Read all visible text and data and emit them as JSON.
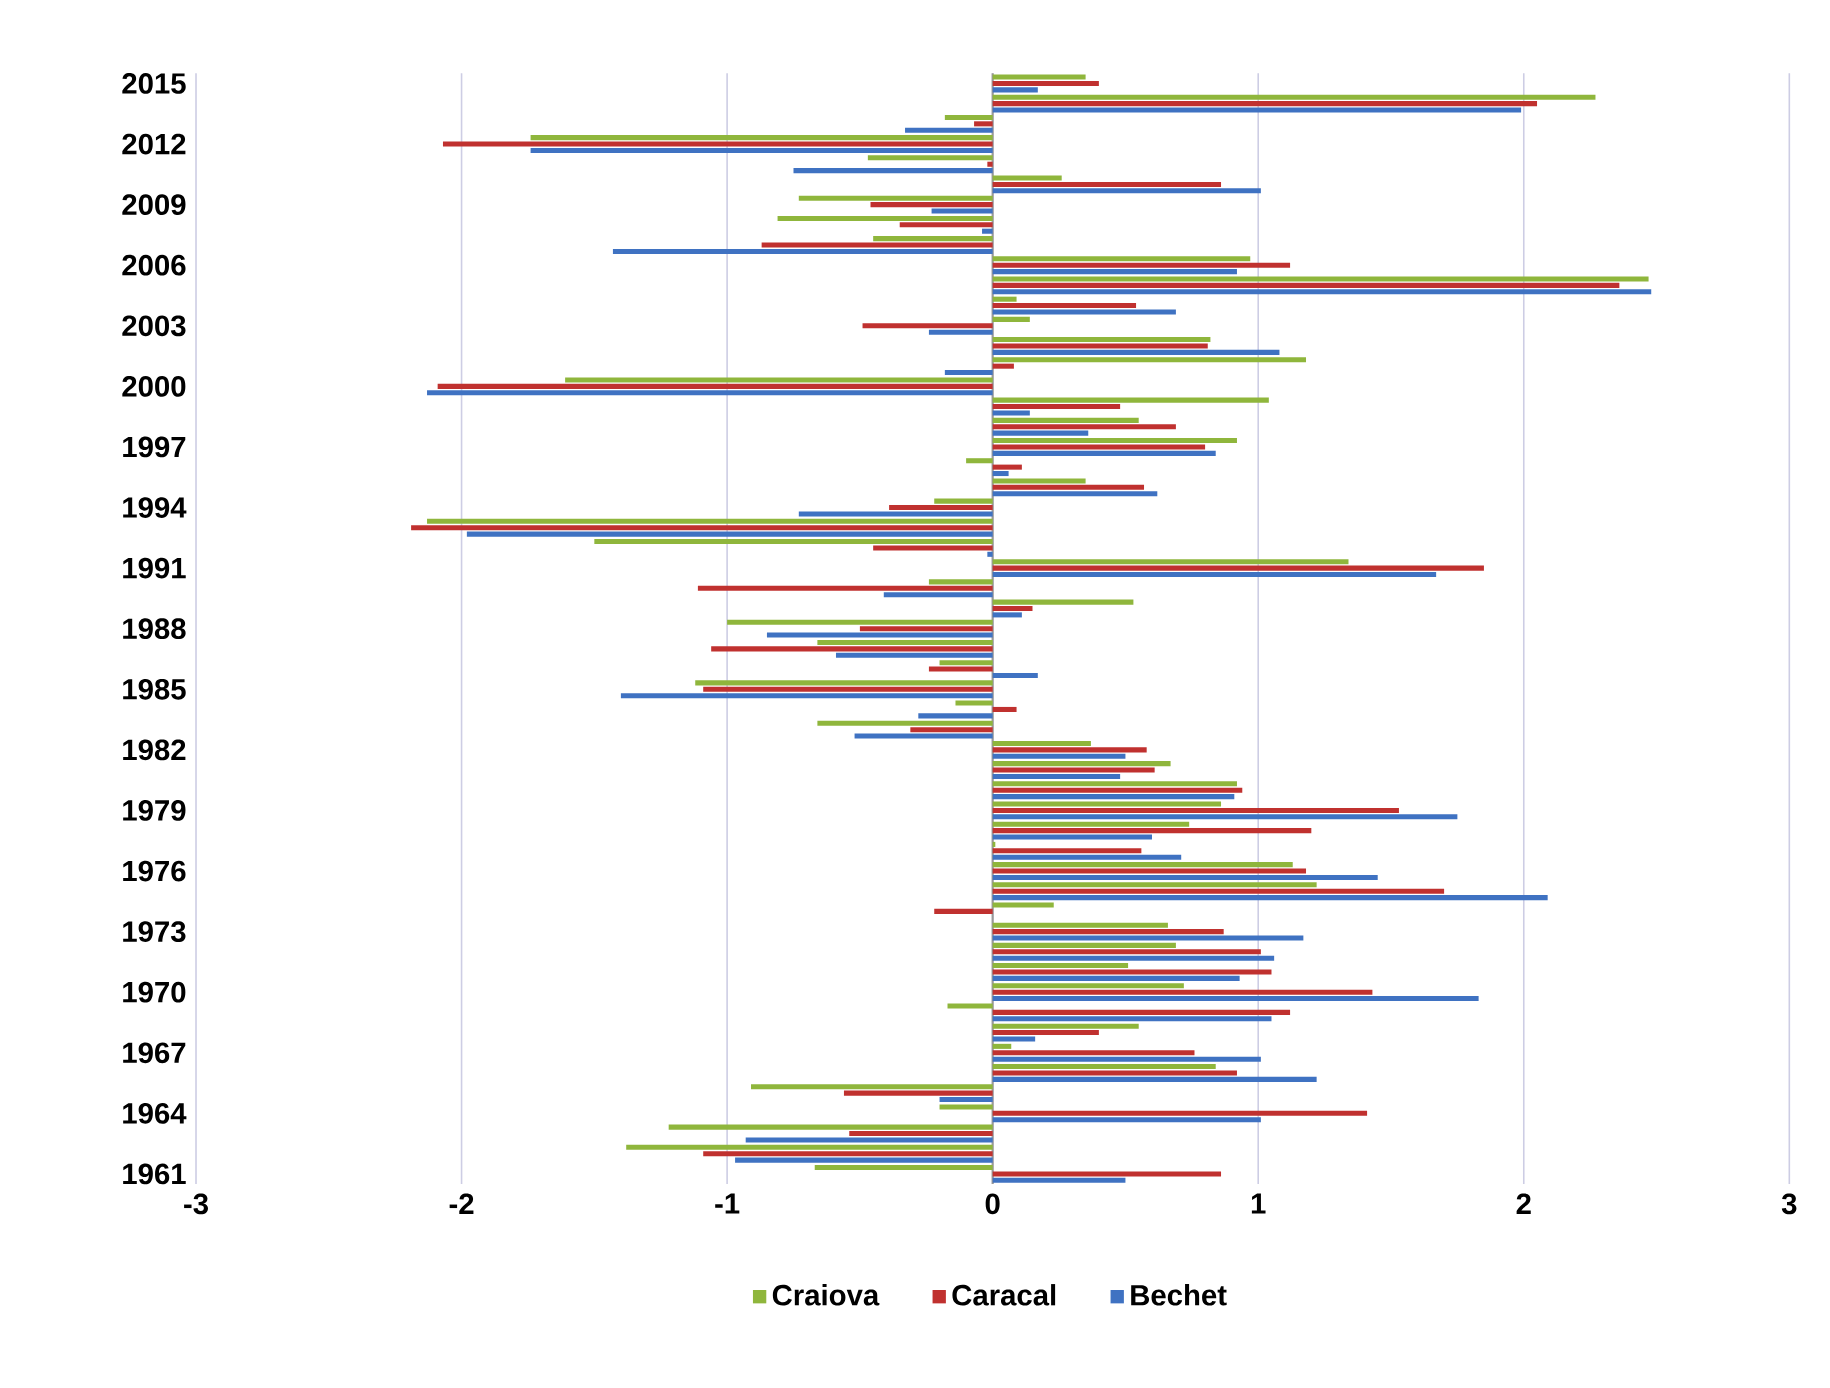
{
  "chart_data": {
    "type": "bar",
    "orientation": "horizontal",
    "categories": [
      "2015",
      null,
      null,
      "2012",
      null,
      null,
      "2009",
      null,
      null,
      "2006",
      null,
      null,
      "2003",
      null,
      null,
      "2000",
      null,
      null,
      "1997",
      null,
      null,
      "1994",
      null,
      null,
      "1991",
      null,
      null,
      "1988",
      null,
      null,
      "1985",
      null,
      null,
      "1982",
      null,
      null,
      "1979",
      null,
      null,
      "1976",
      null,
      null,
      "1973",
      null,
      null,
      "1970",
      null,
      null,
      "1967",
      null,
      null,
      "1964",
      null,
      null,
      "1961"
    ],
    "series": [
      {
        "name": "Craiova",
        "color": "#8fb63c",
        "values": [
          0.35,
          2.27,
          -0.18,
          -1.74,
          -0.47,
          0.26,
          -0.73,
          -0.81,
          -0.45,
          0.97,
          2.47,
          0.09,
          0.14,
          0.82,
          1.18,
          -1.61,
          1.04,
          0.55,
          0.92,
          -0.1,
          0.35,
          -0.22,
          -2.13,
          -1.5,
          1.34,
          -0.24,
          0.53,
          -1.0,
          -0.66,
          -0.2,
          -1.12,
          -0.14,
          -0.66,
          0.37,
          0.67,
          0.92,
          0.86,
          0.74,
          0.01,
          1.13,
          1.22,
          0.23,
          0.66,
          0.69,
          0.51,
          0.72,
          -0.17,
          0.55,
          0.07,
          0.84,
          -0.91,
          -0.2,
          -1.22,
          -1.38,
          -0.67
        ]
      },
      {
        "name": "Caracal",
        "color": "#c0312f",
        "values": [
          0.4,
          2.05,
          -0.07,
          -2.07,
          -0.02,
          0.86,
          -0.46,
          -0.35,
          -0.87,
          1.12,
          2.36,
          0.54,
          -0.49,
          0.81,
          0.08,
          -2.09,
          0.48,
          0.69,
          0.8,
          0.11,
          0.57,
          -0.39,
          -2.19,
          -0.45,
          1.85,
          -1.11,
          0.15,
          -0.5,
          -1.06,
          -0.24,
          -1.09,
          0.09,
          -0.31,
          0.58,
          0.61,
          0.94,
          1.53,
          1.2,
          0.56,
          1.18,
          1.7,
          -0.22,
          0.87,
          1.01,
          1.05,
          1.43,
          1.12,
          0.4,
          0.76,
          0.92,
          -0.56,
          1.41,
          -0.54,
          -1.09,
          0.86
        ]
      },
      {
        "name": "Bechet",
        "color": "#3f72c2",
        "values": [
          0.17,
          1.99,
          -0.33,
          -1.74,
          -0.75,
          1.01,
          -0.23,
          -0.04,
          -1.43,
          0.92,
          2.48,
          0.69,
          -0.24,
          1.08,
          -0.18,
          -2.13,
          0.14,
          0.36,
          0.84,
          0.06,
          0.62,
          -0.73,
          -1.98,
          -0.02,
          1.67,
          -0.41,
          0.11,
          -0.85,
          -0.59,
          0.17,
          -1.4,
          -0.28,
          -0.52,
          0.5,
          0.48,
          0.91,
          1.75,
          0.6,
          0.71,
          1.45,
          2.09,
          0,
          1.17,
          1.06,
          0.93,
          1.83,
          1.05,
          0.16,
          1.01,
          1.22,
          -0.2,
          1.01,
          -0.93,
          -0.97,
          0.5
        ]
      }
    ],
    "xlim": [
      -3,
      3
    ],
    "xticks": [
      -3,
      -2,
      -1,
      0,
      1,
      2,
      3
    ],
    "grid": "x",
    "legend": "bottom"
  }
}
